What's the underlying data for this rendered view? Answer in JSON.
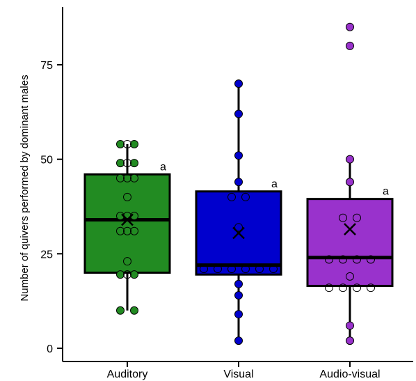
{
  "chart_data": {
    "type": "box",
    "title": "",
    "xlabel": "",
    "ylabel": "Number of quivers performed by dominant males",
    "ylim": [
      -4,
      90
    ],
    "yticks": [
      0,
      25,
      50,
      75
    ],
    "grid": false,
    "legend": "none",
    "categories": [
      "Auditory",
      "Visual",
      "Audio-visual"
    ],
    "groups": [
      {
        "name": "Auditory",
        "color": "#228b22",
        "q1": 20,
        "median": 34,
        "q3": 46,
        "whisker_low": 10,
        "whisker_high": 54,
        "mean": 34,
        "letter": "a",
        "filled_points": [
          54,
          54,
          49,
          49,
          45,
          45,
          35,
          35,
          31,
          31,
          19.5,
          19.5,
          10,
          10
        ],
        "open_points": [
          54,
          49,
          45,
          40,
          35,
          31,
          23,
          19.5
        ]
      },
      {
        "name": "Visual",
        "color": "#0000cd",
        "q1": 19.5,
        "median": 22,
        "q3": 41.5,
        "whisker_low": 2,
        "whisker_high": 70,
        "mean": 30.5,
        "letter": "a",
        "filled_points": [
          70,
          62,
          51,
          44,
          17,
          14,
          9,
          2
        ],
        "open_points": [
          40,
          40,
          32,
          21,
          21,
          21,
          21,
          21,
          21
        ]
      },
      {
        "name": "Audio-visual",
        "color": "#9932cc",
        "q1": 16.5,
        "median": 24,
        "q3": 39.5,
        "whisker_low": 2,
        "whisker_high": 50,
        "mean": 31.5,
        "letter": "a",
        "filled_points": [
          85,
          80,
          50,
          44,
          6,
          2
        ],
        "open_points": [
          34.5,
          34.5,
          23.5,
          23.5,
          23.5,
          23.5,
          19,
          16,
          16,
          16,
          16
        ]
      }
    ]
  }
}
